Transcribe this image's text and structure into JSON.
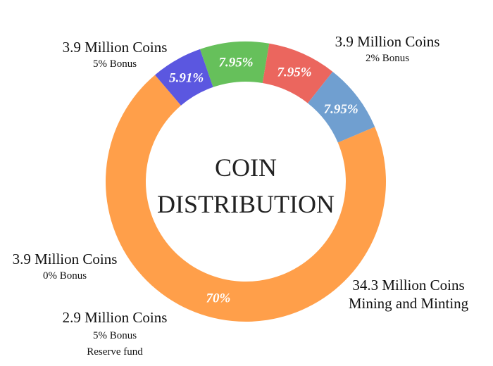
{
  "chart_data": {
    "type": "pie",
    "title": [
      "COIN",
      "DISTRIBUTION"
    ],
    "slices": [
      {
        "value": 70,
        "pct_label": "70%",
        "amount": "34.3 Million Coins",
        "details": [
          "Mining and Minting"
        ],
        "color": "#FF9F4A"
      },
      {
        "value": 5.91,
        "pct_label": "5.91%",
        "amount": "2.9 Million Coins",
        "details": [
          "5% Bonus",
          "Reserve fund"
        ],
        "color": "#5B57E0"
      },
      {
        "value": 7.95,
        "pct_label": "7.95%",
        "amount": "3.9 Million Coins",
        "details": [
          "0% Bonus"
        ],
        "color": "#66C05B"
      },
      {
        "value": 7.95,
        "pct_label": "7.95%",
        "amount": "3.9 Million Coins",
        "details": [
          "5% Bonus"
        ],
        "color": "#EB665E"
      },
      {
        "value": 7.95,
        "pct_label": "7.95%",
        "amount": "3.9 Million Coins",
        "details": [
          "2% Bonus"
        ],
        "color": "#709FD0"
      }
    ]
  }
}
